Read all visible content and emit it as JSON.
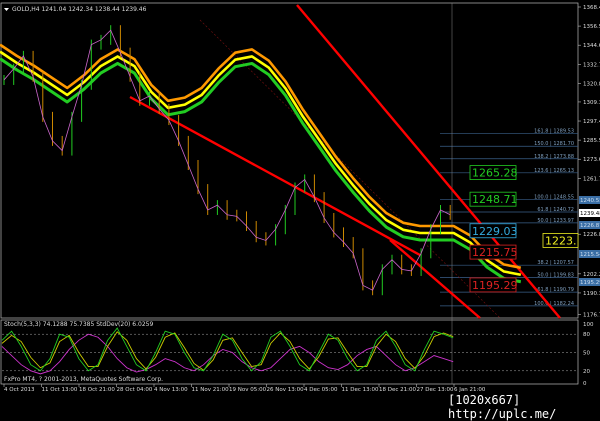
{
  "chart_data": {
    "type": "candlestick",
    "title": "GOLD,H4  1241.04 1242.34 1238.44 1239.46",
    "symbol_icon": "triangle-down-icon",
    "price_axis": {
      "range": [
        1176.75,
        1368.45
      ],
      "ticks": [
        "1368.45",
        "1356.55",
        "1344.65",
        "1332.75",
        "1320.85",
        "1309.30",
        "1297.40",
        "1285.50",
        "1273.60",
        "1261.70",
        "1226.88",
        "1202.20",
        "1190.30",
        "1176.75"
      ]
    },
    "price_tags": [
      {
        "value": "1240.55",
        "color": "#3a6ea5"
      },
      {
        "value": "1239.48",
        "color": "#ffffff"
      },
      {
        "value": "1226.87",
        "color": "#3a6ea5"
      },
      {
        "value": "1215.54",
        "color": "#3a6ea5"
      },
      {
        "value": "1195.29",
        "color": "#3a6ea5"
      }
    ],
    "time_axis": [
      "4 Oct 2013",
      "11 Oct 13:00",
      "18 Oct 21:00",
      "28 Oct 04:00",
      "4 Nov 13:00",
      "11 Nov 21:00",
      "19 Nov 05:00",
      "26 Nov 13:00",
      "4 Dec 05:00",
      "11 Dec 13:00",
      "18 Dec 21:00",
      "27 Dec 13:00",
      "6 Jan 21:00"
    ],
    "close": [
      1323,
      1330,
      1338,
      1325,
      1300,
      1285,
      1279,
      1300,
      1320,
      1345,
      1348,
      1354,
      1340,
      1325,
      1310,
      1313,
      1305,
      1298,
      1285,
      1270,
      1255,
      1242,
      1245,
      1239,
      1238,
      1232,
      1225,
      1223,
      1230,
      1242,
      1256,
      1261,
      1250,
      1237,
      1228,
      1222,
      1215,
      1195,
      1192,
      1205,
      1211,
      1205,
      1204,
      1215,
      1230,
      1242,
      1239
    ],
    "bands_center": [
      1345,
      1338,
      1332,
      1325,
      1318,
      1326,
      1336,
      1342,
      1336,
      1320,
      1310,
      1312,
      1318,
      1330,
      1340,
      1342,
      1335,
      1322,
      1305,
      1290,
      1275,
      1262,
      1250,
      1240,
      1234,
      1232,
      1232,
      1232,
      1226,
      1215,
      1208,
      1206
    ],
    "stoch_main": [
      70,
      85,
      60,
      30,
      20,
      40,
      80,
      75,
      40,
      20,
      30,
      70,
      90,
      60,
      30,
      20,
      50,
      85,
      80,
      50,
      25,
      20,
      45,
      80,
      70,
      40,
      20,
      35,
      75,
      85,
      60,
      30,
      20,
      50,
      80,
      70,
      40,
      20,
      30,
      70,
      85,
      60,
      30,
      20,
      55,
      85,
      80,
      74
    ],
    "stoch_signal": [
      65,
      78,
      68,
      42,
      25,
      33,
      68,
      78,
      50,
      27,
      27,
      60,
      84,
      70,
      40,
      23,
      42,
      75,
      82,
      58,
      32,
      21,
      38,
      70,
      74,
      50,
      27,
      30,
      65,
      82,
      68,
      40,
      23,
      43,
      72,
      74,
      50,
      27,
      27,
      60,
      80,
      68,
      40,
      24,
      45,
      76,
      82,
      76
    ],
    "stddev": [
      60,
      45,
      30,
      20,
      15,
      20,
      35,
      55,
      70,
      80,
      75,
      60,
      40,
      25,
      18,
      22,
      30,
      40,
      35,
      25,
      20,
      30,
      45,
      55,
      50,
      35,
      25,
      20,
      25,
      40,
      55,
      60,
      50,
      35,
      25,
      22,
      30,
      45,
      55,
      60,
      45,
      30,
      20,
      25,
      35,
      45,
      40,
      35
    ],
    "fib_levels": [
      {
        "label": "161.8 | 1289.53",
        "price": 1289.53
      },
      {
        "label": "150.0 | 1281.70",
        "price": 1281.7
      },
      {
        "label": "138.2 | 1273.88",
        "price": 1273.88
      },
      {
        "label": "123.6 | 1265.13",
        "price": 1265.13
      },
      {
        "label": "100.0 | 1248.55",
        "price": 1248.55
      },
      {
        "label": "61.8 | 1240.72",
        "price": 1240.72
      },
      {
        "label": "50.0 | 1233.97",
        "price": 1233.97
      },
      {
        "label": "38.2 | 1207.57",
        "price": 1207.57
      },
      {
        "label": "50.0 | 1199.83",
        "price": 1199.83
      },
      {
        "label": "61.8 | 1190.79",
        "price": 1190.79
      },
      {
        "label": "100.0 | 1182.24",
        "price": 1182.24
      }
    ],
    "boxed_labels": [
      {
        "text": "1265.28",
        "price": 1265.28,
        "color": "#22cc22"
      },
      {
        "text": "1248.71",
        "price": 1248.71,
        "color": "#22cc22"
      },
      {
        "text": "1229.03",
        "price": 1229.03,
        "color": "#33aadd"
      },
      {
        "text": "1223.",
        "price": 1223.0,
        "color": "#eeee22"
      },
      {
        "text": "1215.75",
        "price": 1215.75,
        "color": "#dd2222"
      },
      {
        "text": "1195.29",
        "price": 1195.29,
        "color": "#dd2222"
      }
    ],
    "sub_window": {
      "header": "Stoch(5,3,3) 74.1288 75.7385  StdDev(20) 6.0259",
      "levels": [
        "100",
        "80",
        "50",
        "20",
        "0"
      ],
      "range": [
        0,
        100
      ]
    },
    "copyright": "FxPro MT4, ? 2001-2013, MetaQuotes Software Corp.",
    "colors": {
      "band_outer": "#22cc22",
      "band_mid": "#ffff00",
      "band_inner": "#ff9900",
      "channel": "#ff0000",
      "stoch_main": "#22cc22",
      "stoch_signal": "#cccc00",
      "stddev": "#cc33cc"
    }
  },
  "watermark": "[1020x667] http://uplc.me/"
}
